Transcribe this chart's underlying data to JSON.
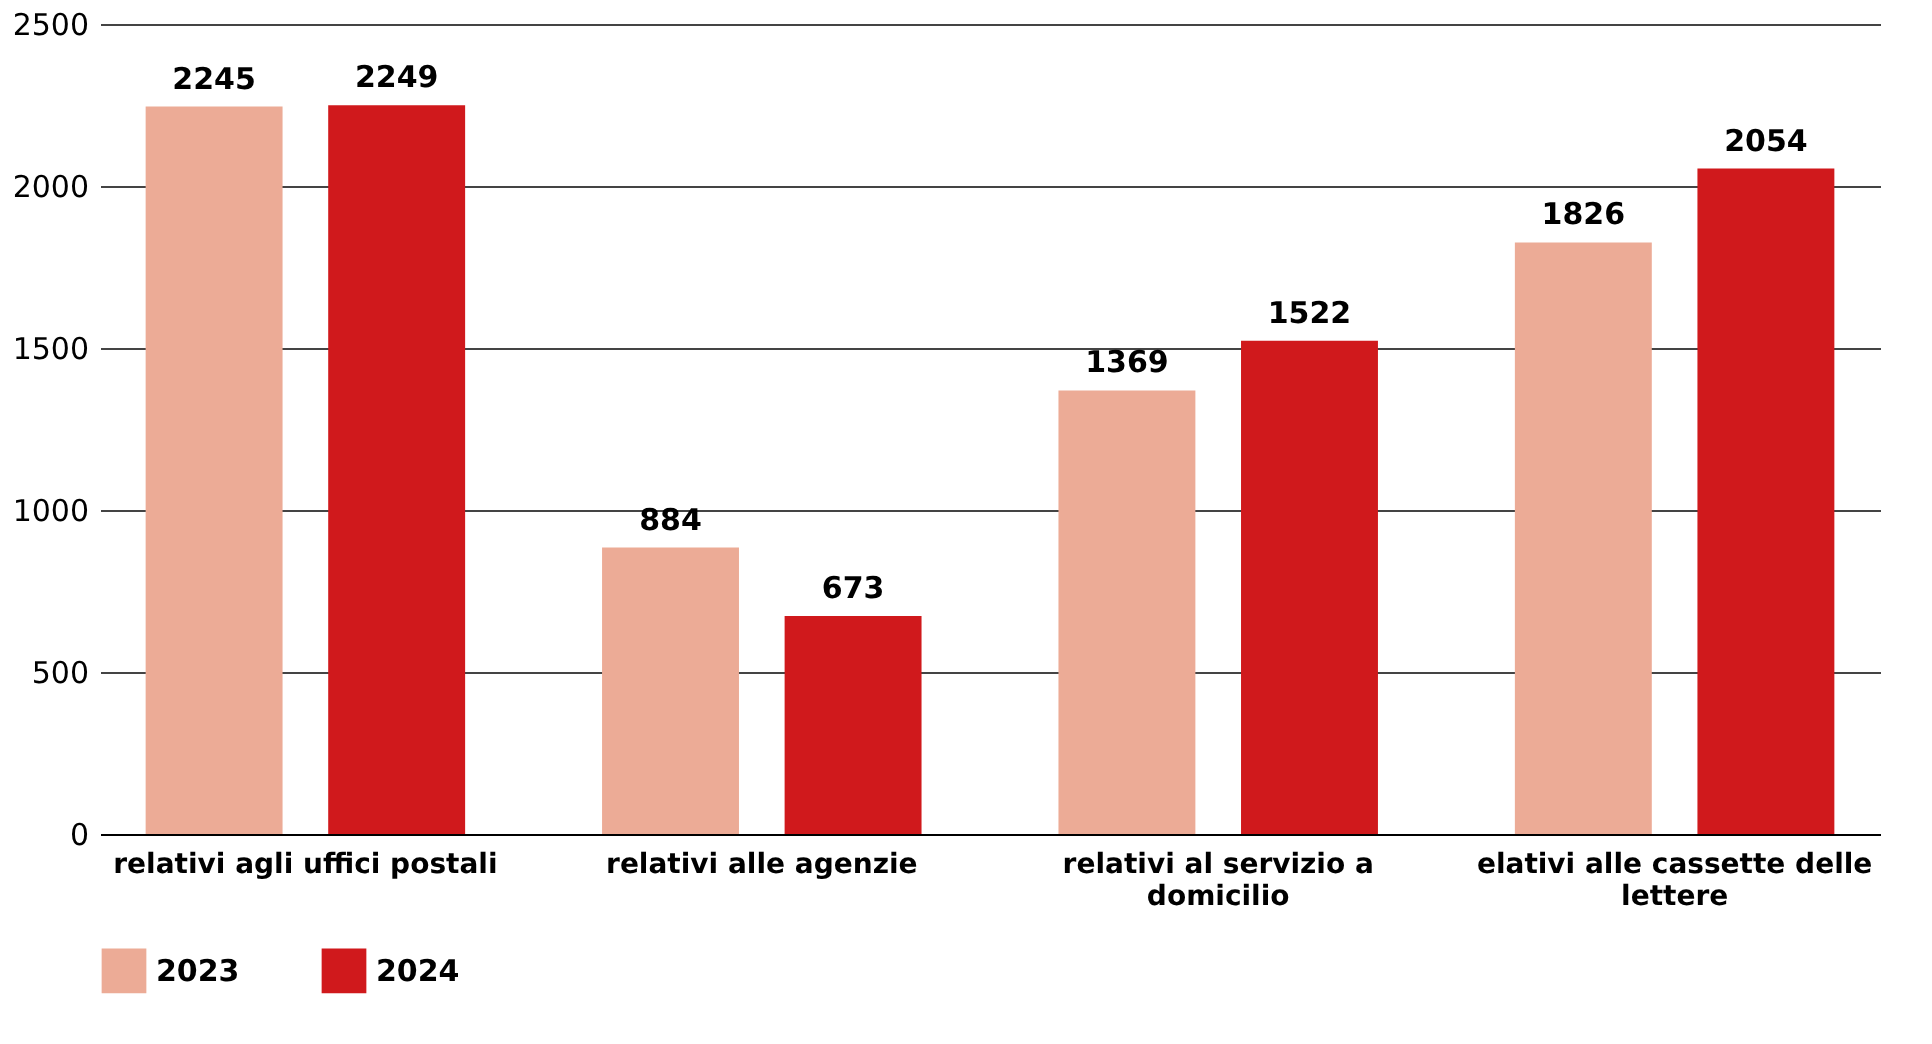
{
  "chart_data": {
    "type": "bar",
    "categories": [
      "relativi agli uffici postali",
      "relativi alle agenzie",
      "relativi al servizio a domicilio",
      "elativi alle cassette delle lettere"
    ],
    "series": [
      {
        "name": "2023",
        "color": "#ecab96",
        "values": [
          2245,
          884,
          1369,
          1826
        ]
      },
      {
        "name": "2024",
        "color": "#d0191c",
        "values": [
          2249,
          673,
          1522,
          2054
        ]
      }
    ],
    "ylim": [
      0,
      2500
    ],
    "yticks": [
      0,
      500,
      1000,
      1500,
      2000,
      2500
    ],
    "grid": "y",
    "legend": "bottom",
    "data_labels": true
  }
}
